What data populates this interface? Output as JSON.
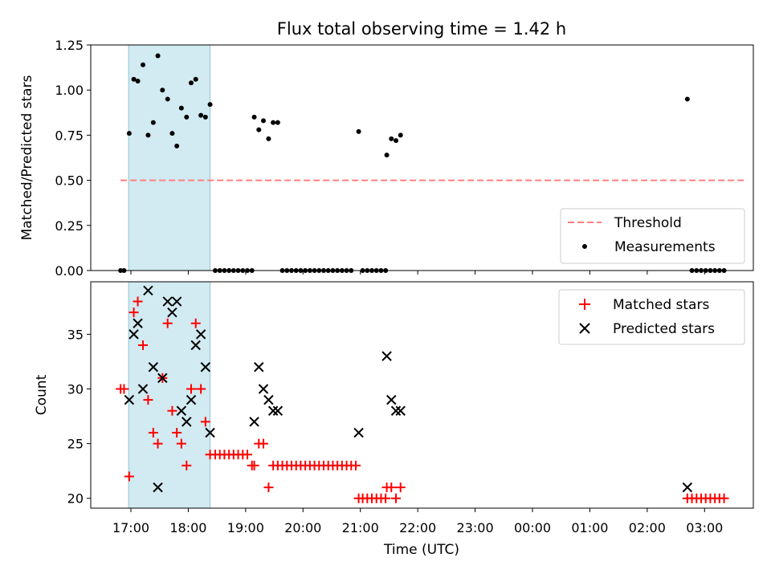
{
  "chart_data": {
    "title": "Flux total observing time = 1.42 h",
    "xlabel": "Time (UTC)",
    "x_unit": "hours UTC (values beyond 24 are after midnight)",
    "x_ticks": [
      {
        "value": 17,
        "label": "17:00"
      },
      {
        "value": 18,
        "label": "18:00"
      },
      {
        "value": 19,
        "label": "19:00"
      },
      {
        "value": 20,
        "label": "20:00"
      },
      {
        "value": 21,
        "label": "21:00"
      },
      {
        "value": 22,
        "label": "22:00"
      },
      {
        "value": 23,
        "label": "23:00"
      },
      {
        "value": 24,
        "label": "00:00"
      },
      {
        "value": 25,
        "label": "01:00"
      },
      {
        "value": 26,
        "label": "02:00"
      },
      {
        "value": 27,
        "label": "03:00"
      }
    ],
    "xlim": [
      16.3,
      27.85
    ],
    "highlight_band": {
      "x_start": 16.96,
      "x_end": 18.38,
      "color": "#add8e6"
    },
    "panels": [
      {
        "type": "scatter",
        "ylabel": "Matched/Predicted stars",
        "ylim": [
          0,
          1.25
        ],
        "y_ticks": [
          0.0,
          0.25,
          0.5,
          0.75,
          1.0,
          1.25
        ],
        "y_tick_labels": [
          "0.00",
          "0.25",
          "0.50",
          "0.75",
          "1.00",
          "1.25"
        ],
        "threshold": {
          "name": "Threshold",
          "value": 0.5,
          "x_range": [
            16.82,
            27.7
          ],
          "color": "#ff7f7f"
        },
        "legend_position": "lower-right",
        "series": [
          {
            "name": "Measurements",
            "marker": "dot",
            "color": "#000000",
            "points": [
              [
                16.82,
                0.0
              ],
              [
                16.88,
                0.0
              ],
              [
                16.97,
                0.76
              ],
              [
                17.05,
                1.06
              ],
              [
                17.12,
                1.05
              ],
              [
                17.21,
                1.14
              ],
              [
                17.3,
                0.75
              ],
              [
                17.39,
                0.82
              ],
              [
                17.47,
                1.19
              ],
              [
                17.55,
                1.0
              ],
              [
                17.64,
                0.95
              ],
              [
                17.72,
                0.76
              ],
              [
                17.8,
                0.69
              ],
              [
                17.88,
                0.9
              ],
              [
                17.97,
                0.85
              ],
              [
                18.05,
                1.04
              ],
              [
                18.13,
                1.06
              ],
              [
                18.22,
                0.86
              ],
              [
                18.3,
                0.85
              ],
              [
                18.38,
                0.92
              ],
              [
                18.47,
                0.0
              ],
              [
                18.55,
                0.0
              ],
              [
                18.63,
                0.0
              ],
              [
                18.71,
                0.0
              ],
              [
                18.79,
                0.0
              ],
              [
                18.87,
                0.0
              ],
              [
                18.95,
                0.0
              ],
              [
                19.03,
                0.0
              ],
              [
                19.11,
                0.0
              ],
              [
                19.15,
                0.85
              ],
              [
                19.23,
                0.78
              ],
              [
                19.31,
                0.83
              ],
              [
                19.4,
                0.73
              ],
              [
                19.48,
                0.82
              ],
              [
                19.56,
                0.82
              ],
              [
                19.64,
                0.0
              ],
              [
                19.72,
                0.0
              ],
              [
                19.8,
                0.0
              ],
              [
                19.88,
                0.0
              ],
              [
                19.96,
                0.0
              ],
              [
                20.04,
                0.0
              ],
              [
                20.12,
                0.0
              ],
              [
                20.2,
                0.0
              ],
              [
                20.28,
                0.0
              ],
              [
                20.36,
                0.0
              ],
              [
                20.44,
                0.0
              ],
              [
                20.52,
                0.0
              ],
              [
                20.6,
                0.0
              ],
              [
                20.68,
                0.0
              ],
              [
                20.76,
                0.0
              ],
              [
                20.84,
                0.0
              ],
              [
                20.97,
                0.77
              ],
              [
                21.04,
                0.0
              ],
              [
                21.12,
                0.0
              ],
              [
                21.2,
                0.0
              ],
              [
                21.28,
                0.0
              ],
              [
                21.36,
                0.0
              ],
              [
                21.44,
                0.0
              ],
              [
                21.46,
                0.64
              ],
              [
                21.54,
                0.73
              ],
              [
                21.62,
                0.72
              ],
              [
                21.7,
                0.75
              ],
              [
                26.7,
                0.95
              ],
              [
                26.78,
                0.0
              ],
              [
                26.86,
                0.0
              ],
              [
                26.94,
                0.0
              ],
              [
                27.02,
                0.0
              ],
              [
                27.1,
                0.0
              ],
              [
                27.18,
                0.0
              ],
              [
                27.26,
                0.0
              ],
              [
                27.34,
                0.0
              ]
            ]
          }
        ]
      },
      {
        "type": "scatter",
        "ylabel": "Count",
        "ylim": [
          19.1,
          39.8
        ],
        "y_ticks": [
          20,
          25,
          30,
          35
        ],
        "y_tick_labels": [
          "20",
          "25",
          "30",
          "35"
        ],
        "legend_position": "upper-right",
        "series": [
          {
            "name": "Matched stars",
            "marker": "plus",
            "color": "#ff0000",
            "points": [
              [
                16.82,
                30
              ],
              [
                16.88,
                30
              ],
              [
                16.97,
                22
              ],
              [
                17.05,
                37
              ],
              [
                17.12,
                38
              ],
              [
                17.21,
                34
              ],
              [
                17.3,
                29
              ],
              [
                17.39,
                26
              ],
              [
                17.47,
                25
              ],
              [
                17.55,
                31
              ],
              [
                17.64,
                36
              ],
              [
                17.72,
                28
              ],
              [
                17.8,
                26
              ],
              [
                17.88,
                25
              ],
              [
                17.97,
                23
              ],
              [
                18.05,
                30
              ],
              [
                18.13,
                36
              ],
              [
                18.22,
                30
              ],
              [
                18.3,
                27
              ],
              [
                18.38,
                24
              ],
              [
                18.47,
                24
              ],
              [
                18.55,
                24
              ],
              [
                18.63,
                24
              ],
              [
                18.71,
                24
              ],
              [
                18.79,
                24
              ],
              [
                18.87,
                24
              ],
              [
                18.95,
                24
              ],
              [
                19.03,
                24
              ],
              [
                19.11,
                23
              ],
              [
                19.15,
                23
              ],
              [
                19.23,
                25
              ],
              [
                19.31,
                25
              ],
              [
                19.4,
                21
              ],
              [
                19.48,
                23
              ],
              [
                19.56,
                23
              ],
              [
                19.64,
                23
              ],
              [
                19.72,
                23
              ],
              [
                19.8,
                23
              ],
              [
                19.88,
                23
              ],
              [
                19.96,
                23
              ],
              [
                20.04,
                23
              ],
              [
                20.12,
                23
              ],
              [
                20.2,
                23
              ],
              [
                20.28,
                23
              ],
              [
                20.36,
                23
              ],
              [
                20.44,
                23
              ],
              [
                20.52,
                23
              ],
              [
                20.6,
                23
              ],
              [
                20.68,
                23
              ],
              [
                20.76,
                23
              ],
              [
                20.84,
                23
              ],
              [
                20.92,
                23
              ],
              [
                20.97,
                20
              ],
              [
                21.04,
                20
              ],
              [
                21.12,
                20
              ],
              [
                21.2,
                20
              ],
              [
                21.28,
                20
              ],
              [
                21.36,
                20
              ],
              [
                21.44,
                20
              ],
              [
                21.46,
                21
              ],
              [
                21.54,
                21
              ],
              [
                21.62,
                20
              ],
              [
                21.7,
                21
              ],
              [
                26.7,
                20
              ],
              [
                26.78,
                20
              ],
              [
                26.86,
                20
              ],
              [
                26.94,
                20
              ],
              [
                27.02,
                20
              ],
              [
                27.1,
                20
              ],
              [
                27.18,
                20
              ],
              [
                27.26,
                20
              ],
              [
                27.34,
                20
              ]
            ]
          },
          {
            "name": "Predicted stars",
            "marker": "x",
            "color": "#000000",
            "points": [
              [
                16.97,
                29
              ],
              [
                17.05,
                35
              ],
              [
                17.12,
                36
              ],
              [
                17.21,
                30
              ],
              [
                17.3,
                39
              ],
              [
                17.39,
                32
              ],
              [
                17.47,
                21
              ],
              [
                17.55,
                31
              ],
              [
                17.64,
                38
              ],
              [
                17.72,
                37
              ],
              [
                17.8,
                38
              ],
              [
                17.88,
                28
              ],
              [
                17.97,
                27
              ],
              [
                18.05,
                29
              ],
              [
                18.13,
                34
              ],
              [
                18.22,
                35
              ],
              [
                18.3,
                32
              ],
              [
                18.38,
                26
              ],
              [
                19.15,
                27
              ],
              [
                19.23,
                32
              ],
              [
                19.31,
                30
              ],
              [
                19.4,
                29
              ],
              [
                19.48,
                28
              ],
              [
                19.56,
                28
              ],
              [
                20.97,
                26
              ],
              [
                21.46,
                33
              ],
              [
                21.54,
                29
              ],
              [
                21.62,
                28
              ],
              [
                21.7,
                28
              ],
              [
                26.7,
                21
              ]
            ]
          }
        ]
      }
    ]
  }
}
